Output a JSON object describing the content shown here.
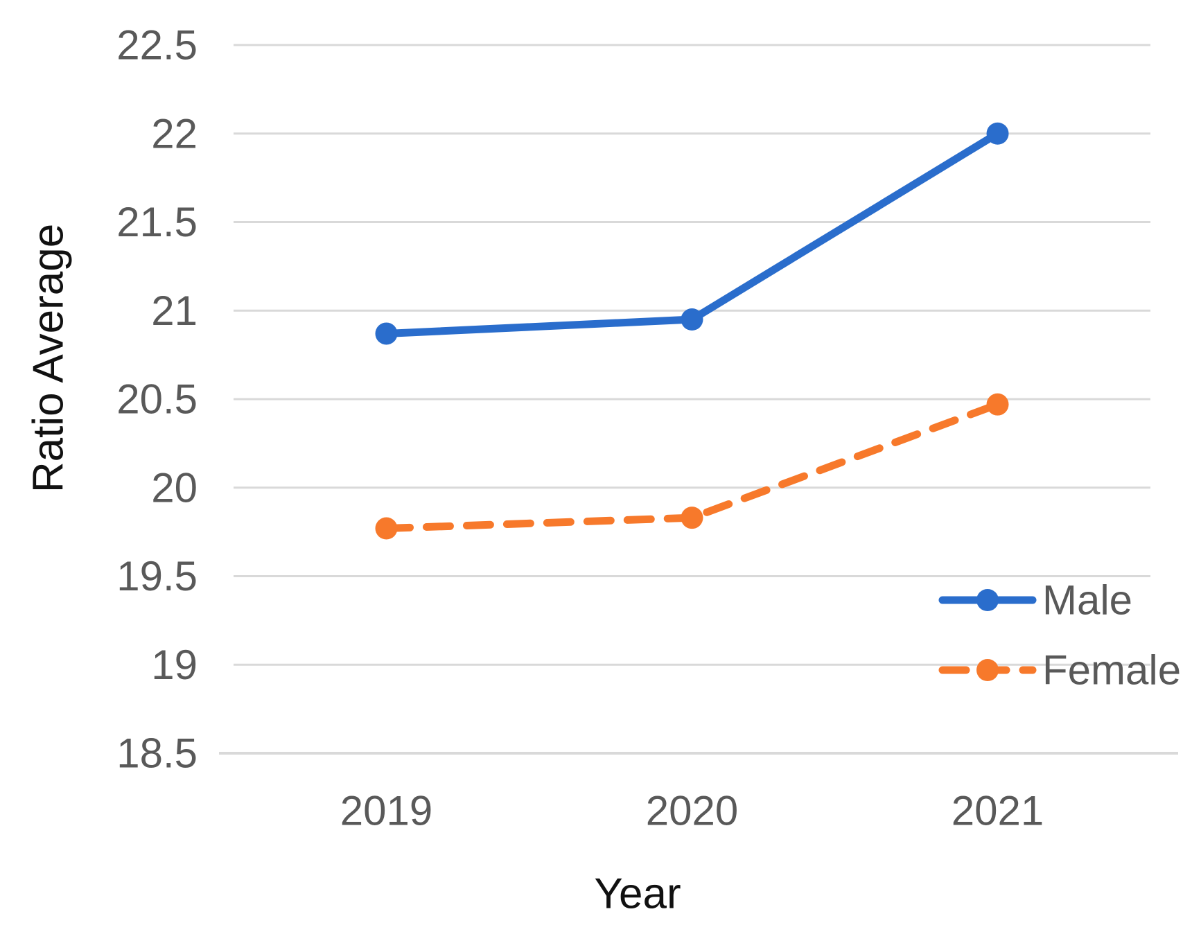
{
  "chart_data": {
    "type": "line",
    "categories": [
      "2019",
      "2020",
      "2021"
    ],
    "series": [
      {
        "name": "Male",
        "values": [
          20.87,
          20.95,
          22.0
        ],
        "color": "#2A6DCC",
        "line_style": "solid",
        "marker": "circle"
      },
      {
        "name": "Female",
        "values": [
          19.77,
          19.83,
          20.47
        ],
        "color": "#F7792B",
        "line_style": "dashed",
        "marker": "circle"
      }
    ],
    "xlabel": "Year",
    "ylabel": "Ratio Average",
    "ylim": [
      18.5,
      22.5
    ],
    "ytick_step": 0.5,
    "y_ticks": [
      "22.5",
      "22",
      "21.5",
      "21",
      "20.5",
      "20",
      "19.5",
      "19",
      "18.5"
    ],
    "x_ticks": [
      "2019",
      "2020",
      "2021"
    ],
    "grid": true,
    "legend_position": "inside-bottom-right",
    "legend_entries": [
      "Male",
      "Female"
    ],
    "colors": {
      "gridline": "#D9D9D9",
      "axis_line": "#D9D9D9",
      "tick_text": "#595959",
      "axis_title_text": "#111111",
      "background": "#FFFFFF"
    }
  }
}
